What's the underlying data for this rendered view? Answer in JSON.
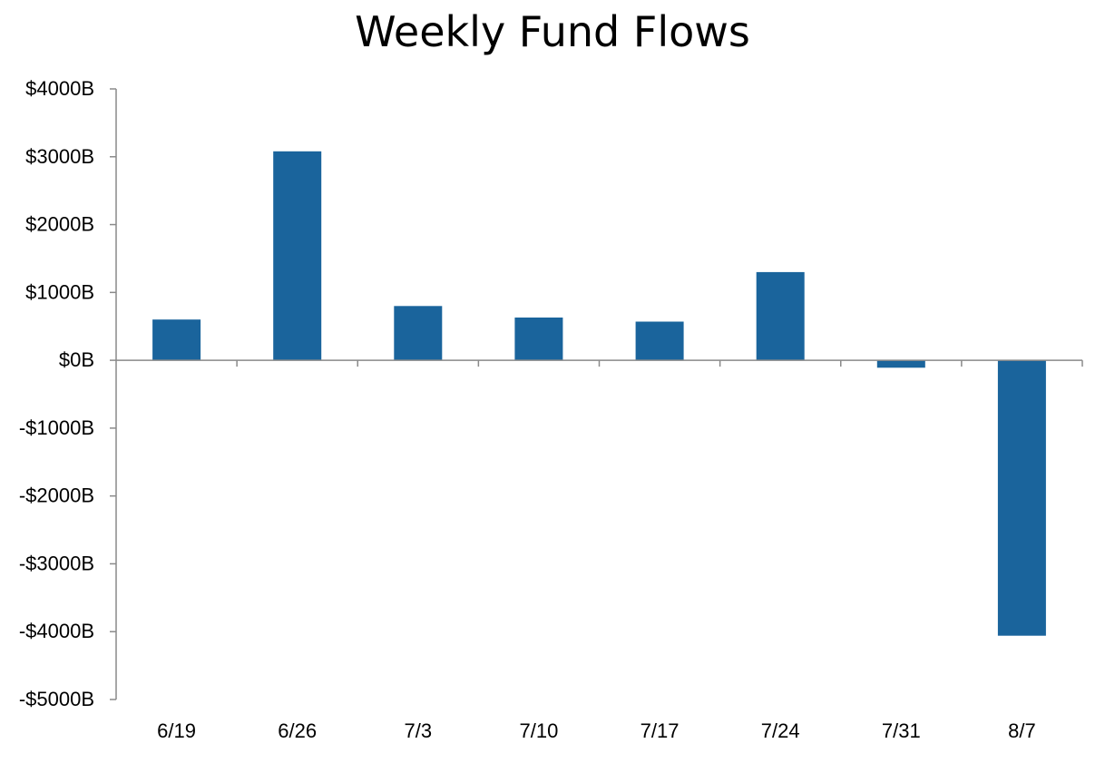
{
  "chart_data": {
    "type": "bar",
    "title": "Weekly Fund Flows",
    "xlabel": "",
    "ylabel": "",
    "categories": [
      "6/19",
      "6/26",
      "7/3",
      "7/10",
      "7/17",
      "7/24",
      "7/31",
      "8/7"
    ],
    "values": [
      600,
      3080,
      800,
      630,
      570,
      1300,
      -110,
      -4060
    ],
    "ylim": [
      -5000,
      4000
    ],
    "yticks": [
      4000,
      3000,
      2000,
      1000,
      0,
      -1000,
      -2000,
      -3000,
      -4000,
      -5000
    ],
    "ytick_labels": [
      "$4000B",
      "$3000B",
      "$2000B",
      "$1000B",
      "$0B",
      "-$1000B",
      "-$2000B",
      "-$3000B",
      "-$4000B",
      "-$5000B"
    ],
    "grid": false,
    "legend": "none",
    "colors": {
      "bar": "#1a649c",
      "axis": "#8a8a8a"
    }
  }
}
